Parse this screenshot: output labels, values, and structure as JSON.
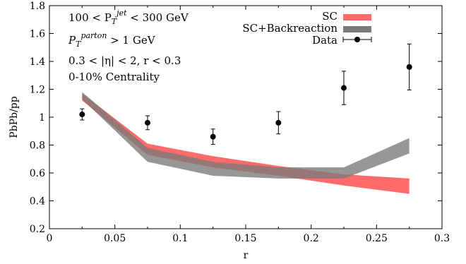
{
  "chart_data": {
    "type": "line",
    "xlabel": "r",
    "ylabel": "PbPb/pp",
    "xlim": [
      0,
      0.3
    ],
    "ylim": [
      0.2,
      1.8
    ],
    "xticks": [
      "0",
      "0.05",
      "0.1",
      "0.15",
      "0.2",
      "0.25",
      "0.3"
    ],
    "yticks": [
      "0.2",
      "0.4",
      "0.6",
      "0.8",
      "1",
      "1.2",
      "1.4",
      "1.6",
      "1.8"
    ],
    "grid": false,
    "legend_position": "top-right",
    "annotations": {
      "line1_pre": "100 < P",
      "line1_sub": "T",
      "line1_sup": "jet",
      "line1_post": " < 300 GeV",
      "line2_pre": "P",
      "line2_sub": "T",
      "line2_sup": "parton",
      "line2_post": " > 1 GeV",
      "line3": "0.3 < |η| < 2, r < 0.3",
      "line4": "0-10% Centrality"
    },
    "series": [
      {
        "name": "SC",
        "style": "band",
        "color": "#ff6a6a",
        "x": [
          0.025,
          0.075,
          0.125,
          0.175,
          0.225,
          0.275
        ],
        "lower": [
          1.12,
          0.73,
          0.64,
          0.58,
          0.51,
          0.45
        ],
        "upper": [
          1.17,
          0.81,
          0.72,
          0.65,
          0.59,
          0.56
        ]
      },
      {
        "name": "SC+Backreaction",
        "style": "band",
        "color": "#7a7a7a",
        "opacity": 0.78,
        "x": [
          0.025,
          0.075,
          0.125,
          0.175,
          0.225,
          0.275
        ],
        "lower": [
          1.13,
          0.68,
          0.58,
          0.56,
          0.56,
          0.74
        ],
        "upper": [
          1.18,
          0.78,
          0.68,
          0.64,
          0.64,
          0.85
        ]
      },
      {
        "name": "Data",
        "style": "points",
        "color": "#000000",
        "x": [
          0.025,
          0.075,
          0.125,
          0.175,
          0.225,
          0.275
        ],
        "y": [
          1.02,
          0.96,
          0.86,
          0.96,
          1.21,
          1.36
        ],
        "err": [
          0.04,
          0.05,
          0.055,
          0.08,
          0.12,
          0.165
        ]
      }
    ]
  }
}
